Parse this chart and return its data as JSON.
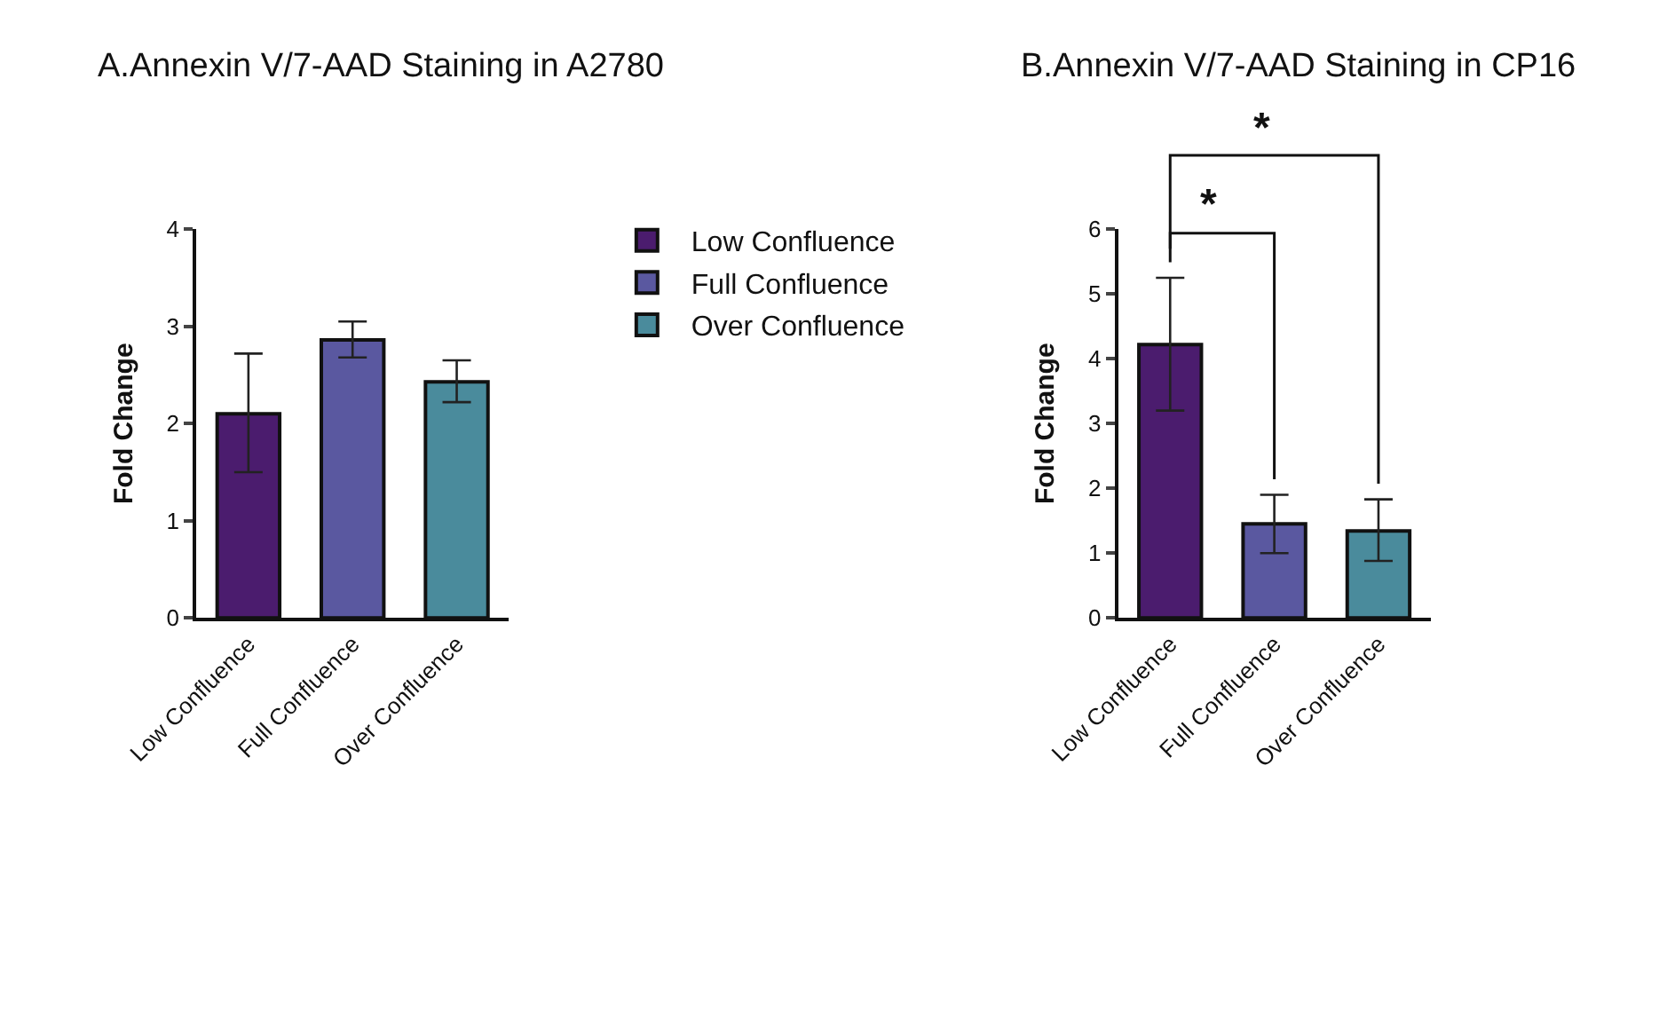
{
  "chart_data": [
    {
      "type": "bar",
      "title": "A.Annexin V/7-AAD Staining in A2780",
      "ylabel": "Fold Change",
      "categories": [
        "Low Confluence",
        "Full Confluence",
        "Over Confluence"
      ],
      "ylim": [
        0,
        4
      ],
      "yticks": [
        0,
        1,
        2,
        3,
        4
      ],
      "legend": "right",
      "series": [
        {
          "name": "Low Confluence",
          "color": "#4b1c6e",
          "values": [
            2.1,
            null,
            null
          ],
          "errors": [
            [
              1.5,
              2.72
            ],
            null,
            null
          ]
        },
        {
          "name": "Full Confluence",
          "color": "#5a58a0",
          "values": [
            null,
            2.86,
            null
          ],
          "errors": [
            null,
            [
              2.68,
              3.05
            ],
            null
          ]
        },
        {
          "name": "Over Confluence",
          "color": "#4a8b9c",
          "values": [
            null,
            null,
            2.43
          ],
          "errors": [
            null,
            null,
            [
              2.22,
              2.65
            ]
          ]
        }
      ]
    },
    {
      "type": "bar",
      "title": "B.Annexin V/7-AAD Staining in CP16",
      "ylabel": "Fold Change",
      "categories": [
        "Low Confluence",
        "Full Confluence",
        "Over Confluence"
      ],
      "ylim": [
        0,
        6
      ],
      "yticks": [
        0,
        1,
        2,
        3,
        4,
        5,
        6
      ],
      "annotations": [
        "*",
        "*"
      ],
      "series": [
        {
          "color": "#4b1c6e",
          "values": [
            4.22,
            null,
            null
          ],
          "errors": [
            [
              3.2,
              5.25
            ],
            null,
            null
          ]
        },
        {
          "color": "#5a58a0",
          "values": [
            null,
            1.45,
            null
          ],
          "errors": [
            null,
            [
              1.0,
              1.9
            ],
            null
          ]
        },
        {
          "color": "#4a8b9c",
          "values": [
            null,
            null,
            1.34
          ],
          "errors": [
            null,
            null,
            [
              0.88,
              1.83
            ]
          ]
        }
      ]
    }
  ]
}
